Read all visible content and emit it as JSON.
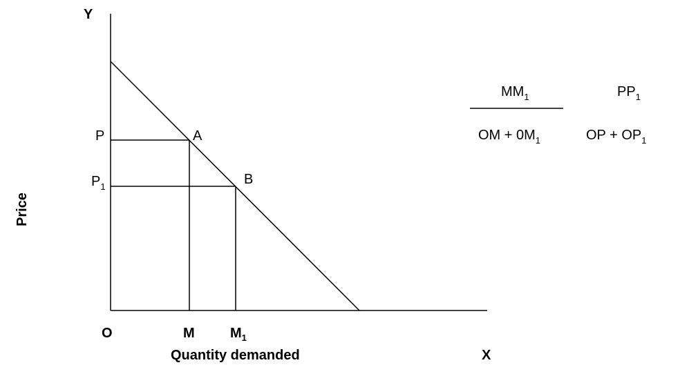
{
  "axes": {
    "y_label": "Y",
    "x_label": "X",
    "origin_label": "O",
    "y_title": "Price",
    "x_title": "Quantity demanded"
  },
  "points": {
    "a": "A",
    "b": "B"
  },
  "price_labels": {
    "p": "P",
    "p1_main": "P",
    "p1_sub": "1"
  },
  "quantity_labels": {
    "m": "M",
    "m1_main": "M",
    "m1_sub": "1"
  },
  "formula": {
    "left_numerator_main": "MM",
    "left_numerator_sub": "1",
    "left_denominator_part1": "OM + 0M",
    "left_denominator_sub": "1",
    "right_numerator_main": "PP",
    "right_numerator_sub": "1",
    "right_denominator_part1": "OP + OP",
    "right_denominator_sub": "1"
  }
}
